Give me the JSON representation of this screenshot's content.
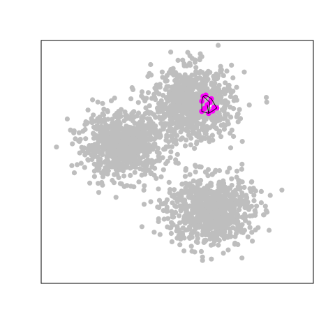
{
  "chart_data": {
    "type": "scatter",
    "title": "",
    "xlabel": "",
    "ylabel": "",
    "axes_shown": false,
    "grid": false,
    "xlim": [
      0,
      1
    ],
    "ylim": [
      0,
      1
    ],
    "background_color": "#ffffff",
    "frame_color": "#000000",
    "series": [
      {
        "role": "background",
        "color": "#bebebe",
        "count": 2400,
        "clusters": [
          {
            "center": [
              0.3,
              0.57
            ],
            "spread": [
              0.075,
              0.065
            ],
            "weight": 0.34
          },
          {
            "center": [
              0.56,
              0.74
            ],
            "spread": [
              0.075,
              0.075
            ],
            "weight": 0.33
          },
          {
            "center": [
              0.62,
              0.3
            ],
            "spread": [
              0.08,
              0.07
            ],
            "weight": 0.33
          }
        ]
      },
      {
        "role": "highlighted",
        "color": "#ff00ff",
        "points": [
          {
            "x": 0.595,
            "y": 0.77
          },
          {
            "x": 0.605,
            "y": 0.775
          },
          {
            "x": 0.59,
            "y": 0.75
          },
          {
            "x": 0.62,
            "y": 0.745
          },
          {
            "x": 0.635,
            "y": 0.725
          },
          {
            "x": 0.63,
            "y": 0.71
          },
          {
            "x": 0.615,
            "y": 0.7
          },
          {
            "x": 0.6,
            "y": 0.72
          },
          {
            "x": 0.59,
            "y": 0.708
          },
          {
            "x": 0.61,
            "y": 0.735
          },
          {
            "x": 0.625,
            "y": 0.76
          },
          {
            "x": 0.645,
            "y": 0.722
          }
        ],
        "hull_color": "#000000"
      }
    ]
  }
}
